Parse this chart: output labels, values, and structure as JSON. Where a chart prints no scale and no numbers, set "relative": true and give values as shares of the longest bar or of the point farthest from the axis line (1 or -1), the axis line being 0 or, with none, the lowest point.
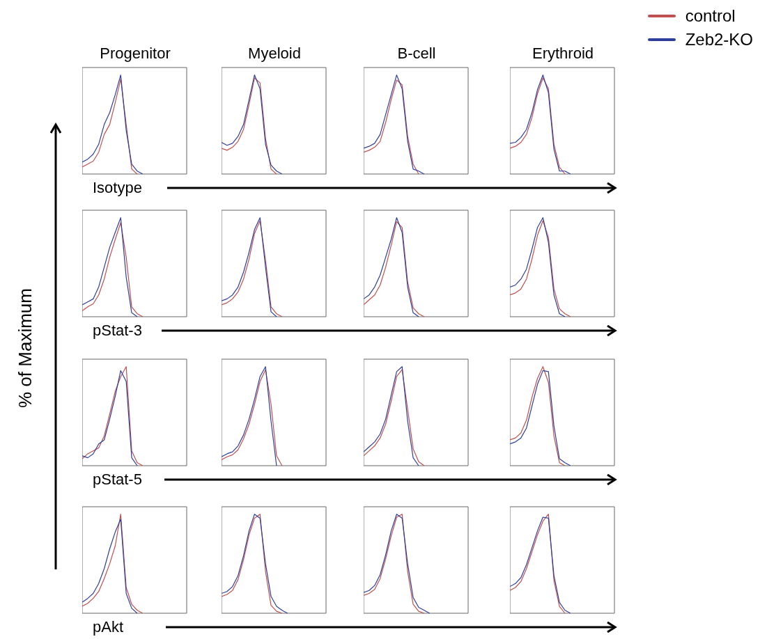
{
  "chart_data": [
    {
      "type": "line",
      "title": "Progenitor",
      "xlabel": "Isotype",
      "legend": "top right",
      "relative": true,
      "tick_labels": false,
      "categories": [
        null,
        null,
        null,
        null,
        null,
        null,
        null,
        null,
        null,
        null,
        null,
        null,
        null,
        null,
        null,
        null,
        null,
        null,
        null,
        null
      ],
      "series": [
        {
          "name": "control",
          "color": "#c0504d",
          "values": [
            0.07,
            0.1,
            0.13,
            0.22,
            0.4,
            0.5,
            0.72,
            0.96,
            0.5,
            0.05,
            0,
            null,
            null,
            null,
            null,
            null,
            null,
            null,
            null,
            null
          ]
        },
        {
          "name": "Zeb2-KO",
          "color": "#2e3f9e",
          "values": [
            0.12,
            0.15,
            0.2,
            0.3,
            0.5,
            0.62,
            0.8,
            1.0,
            0.44,
            0.1,
            0.03,
            0,
            null,
            null,
            null,
            null,
            null,
            null,
            null,
            null
          ]
        }
      ]
    },
    {
      "type": "line",
      "title": "Myeloid",
      "relative": true,
      "tick_labels": false,
      "categories": [
        null,
        null,
        null,
        null,
        null,
        null,
        null,
        null,
        null,
        null,
        null,
        null,
        null,
        null,
        null,
        null,
        null,
        null,
        null,
        null
      ],
      "series": [
        {
          "color": "#c0504d",
          "values": [
            0.26,
            0.24,
            0.27,
            0.33,
            0.45,
            0.7,
            0.97,
            0.92,
            0.36,
            0.05,
            0,
            null,
            null,
            null,
            null,
            null,
            null,
            null,
            null,
            null
          ]
        },
        {
          "color": "#2e3f9e",
          "values": [
            0.32,
            0.29,
            0.31,
            0.38,
            0.5,
            0.75,
            1.0,
            0.86,
            0.3,
            0.09,
            0.03,
            0,
            null,
            null,
            null,
            null,
            null,
            null,
            null,
            null
          ]
        }
      ]
    },
    {
      "type": "line",
      "title": "B-cell",
      "relative": true,
      "tick_labels": false,
      "categories": [
        null,
        null,
        null,
        null,
        null,
        null,
        null,
        null,
        null,
        null,
        null,
        null,
        null,
        null,
        null,
        null,
        null,
        null,
        null,
        null
      ],
      "series": [
        {
          "color": "#c0504d",
          "values": [
            0.22,
            0.24,
            0.27,
            0.33,
            0.52,
            0.75,
            0.95,
            0.9,
            0.38,
            0.1,
            0,
            null,
            null,
            null,
            null,
            null,
            null,
            null,
            null,
            null
          ]
        },
        {
          "color": "#2e3f9e",
          "values": [
            0.26,
            0.28,
            0.31,
            0.4,
            0.6,
            0.8,
            1.0,
            0.86,
            0.33,
            0.05,
            0.03,
            0,
            null,
            null,
            null,
            null,
            null,
            null,
            null,
            null
          ]
        }
      ]
    },
    {
      "type": "line",
      "title": "Erythroid",
      "relative": true,
      "tick_labels": false,
      "categories": [
        null,
        null,
        null,
        null,
        null,
        null,
        null,
        null,
        null,
        null,
        null,
        null,
        null,
        null,
        null,
        null,
        null,
        null,
        null,
        null
      ],
      "series": [
        {
          "color": "#c0504d",
          "values": [
            0.26,
            0.28,
            0.32,
            0.4,
            0.57,
            0.81,
            0.97,
            0.86,
            0.3,
            0.07,
            0,
            null,
            null,
            null,
            null,
            null,
            null,
            null,
            null,
            null
          ]
        },
        {
          "color": "#2e3f9e",
          "values": [
            0.31,
            0.32,
            0.37,
            0.45,
            0.62,
            0.85,
            1.0,
            0.82,
            0.25,
            0.03,
            0.03,
            0,
            null,
            null,
            null,
            null,
            null,
            null,
            null,
            null
          ]
        }
      ]
    },
    {
      "type": "line",
      "xlabel": "pStat-3",
      "ylabel": "% of Maximum",
      "relative": true,
      "tick_labels": false,
      "categories": [
        null,
        null,
        null,
        null,
        null,
        null,
        null,
        null,
        null,
        null,
        null,
        null,
        null,
        null,
        null,
        null,
        null,
        null,
        null,
        null
      ],
      "series": [
        {
          "color": "#c0504d",
          "values": [
            0.06,
            0.1,
            0.13,
            0.22,
            0.38,
            0.6,
            0.78,
            0.95,
            0.6,
            0.1,
            0.03,
            0,
            null,
            null,
            null,
            null,
            null,
            null,
            null,
            null
          ]
        },
        {
          "color": "#2e3f9e",
          "values": [
            0.12,
            0.15,
            0.18,
            0.3,
            0.5,
            0.7,
            0.85,
            1.0,
            0.4,
            0.04,
            0,
            null,
            null,
            null,
            null,
            null,
            null,
            null,
            null,
            null
          ]
        }
      ]
    },
    {
      "type": "line",
      "relative": true,
      "tick_labels": false,
      "categories": [
        null,
        null,
        null,
        null,
        null,
        null,
        null,
        null,
        null,
        null,
        null,
        null,
        null,
        null,
        null,
        null,
        null,
        null,
        null,
        null
      ],
      "series": [
        {
          "color": "#c0504d",
          "values": [
            0.12,
            0.14,
            0.18,
            0.25,
            0.38,
            0.58,
            0.84,
            0.97,
            0.57,
            0.1,
            0.03,
            0,
            null,
            null,
            null,
            null,
            null,
            null,
            null,
            null
          ]
        },
        {
          "color": "#2e3f9e",
          "values": [
            0.16,
            0.18,
            0.22,
            0.3,
            0.45,
            0.65,
            0.88,
            1.0,
            0.5,
            0.05,
            0,
            null,
            null,
            null,
            null,
            null,
            null,
            null,
            null,
            null
          ]
        }
      ]
    },
    {
      "type": "line",
      "relative": true,
      "tick_labels": false,
      "categories": [
        null,
        null,
        null,
        null,
        null,
        null,
        null,
        null,
        null,
        null,
        null,
        null,
        null,
        null,
        null,
        null,
        null,
        null,
        null,
        null
      ],
      "series": [
        {
          "color": "#c0504d",
          "values": [
            0.12,
            0.17,
            0.22,
            0.32,
            0.5,
            0.72,
            0.96,
            0.9,
            0.35,
            0.09,
            0.03,
            0,
            null,
            null,
            null,
            null,
            null,
            null,
            null,
            null
          ]
        },
        {
          "color": "#2e3f9e",
          "values": [
            0.18,
            0.22,
            0.3,
            0.42,
            0.6,
            0.78,
            1.0,
            0.85,
            0.3,
            0.04,
            0,
            null,
            null,
            null,
            null,
            null,
            null,
            null,
            null,
            null
          ]
        }
      ]
    },
    {
      "type": "line",
      "relative": true,
      "tick_labels": false,
      "categories": [
        null,
        null,
        null,
        null,
        null,
        null,
        null,
        null,
        null,
        null,
        null,
        null,
        null,
        null,
        null,
        null,
        null,
        null,
        null,
        null
      ],
      "series": [
        {
          "color": "#c0504d",
          "values": [
            0.22,
            0.24,
            0.28,
            0.38,
            0.58,
            0.82,
            0.97,
            0.8,
            0.28,
            0.08,
            0.03,
            0,
            null,
            null,
            null,
            null,
            null,
            null,
            null,
            null
          ]
        },
        {
          "color": "#2e3f9e",
          "values": [
            0.3,
            0.32,
            0.38,
            0.48,
            0.68,
            0.9,
            1.0,
            0.75,
            0.22,
            0.03,
            0,
            null,
            null,
            null,
            null,
            null,
            null,
            null,
            null,
            null
          ]
        }
      ]
    },
    {
      "type": "line",
      "xlabel": "pStat-5",
      "relative": true,
      "tick_labels": false,
      "categories": [
        null,
        null,
        null,
        null,
        null,
        null,
        null,
        null,
        null,
        null,
        null,
        null,
        null,
        null,
        null,
        null,
        null,
        null,
        null,
        null
      ],
      "series": [
        {
          "color": "#c0504d",
          "values": [
            0.07,
            0.12,
            0.15,
            0.18,
            0.3,
            0.52,
            0.75,
            0.9,
            1.0,
            0.15,
            0.03,
            0,
            null,
            null,
            null,
            null,
            null,
            null,
            null,
            null
          ]
        },
        {
          "color": "#2e3f9e",
          "values": [
            0.1,
            0.08,
            0.12,
            0.22,
            0.26,
            0.47,
            0.7,
            0.96,
            0.85,
            0.08,
            0,
            null,
            null,
            null,
            null,
            null,
            null,
            null,
            null,
            null
          ]
        }
      ]
    },
    {
      "type": "line",
      "relative": true,
      "tick_labels": false,
      "categories": [
        null,
        null,
        null,
        null,
        null,
        null,
        null,
        null,
        null,
        null,
        null,
        null,
        null,
        null,
        null,
        null,
        null,
        null,
        null,
        null
      ],
      "series": [
        {
          "color": "#c0504d",
          "values": [
            0.06,
            0.09,
            0.11,
            0.16,
            0.27,
            0.42,
            0.62,
            0.85,
            0.97,
            0.62,
            0.1,
            0,
            null,
            null,
            null,
            null,
            null,
            null,
            null,
            null
          ]
        },
        {
          "color": "#2e3f9e",
          "values": [
            0.09,
            0.12,
            0.14,
            0.2,
            0.31,
            0.47,
            0.67,
            0.9,
            1.0,
            0.45,
            0,
            null,
            null,
            null,
            null,
            null,
            null,
            null,
            null,
            null
          ]
        }
      ]
    },
    {
      "type": "line",
      "relative": true,
      "tick_labels": false,
      "categories": [
        null,
        null,
        null,
        null,
        null,
        null,
        null,
        null,
        null,
        null,
        null,
        null,
        null,
        null,
        null,
        null,
        null,
        null,
        null,
        null
      ],
      "series": [
        {
          "color": "#c0504d",
          "values": [
            0.1,
            0.15,
            0.2,
            0.28,
            0.42,
            0.65,
            0.9,
            0.97,
            0.57,
            0.17,
            0.04,
            0,
            null,
            null,
            null,
            null,
            null,
            null,
            null,
            null
          ]
        },
        {
          "color": "#2e3f9e",
          "values": [
            0.14,
            0.19,
            0.24,
            0.32,
            0.47,
            0.71,
            0.95,
            1.0,
            0.45,
            0.08,
            0,
            null,
            null,
            null,
            null,
            null,
            null,
            null,
            null,
            null
          ]
        }
      ]
    },
    {
      "type": "line",
      "relative": true,
      "tick_labels": false,
      "categories": [
        null,
        null,
        null,
        null,
        null,
        null,
        null,
        null,
        null,
        null,
        null,
        null,
        null,
        null,
        null,
        null,
        null,
        null,
        null,
        null
      ],
      "series": [
        {
          "color": "#c0504d",
          "values": [
            0.26,
            0.28,
            0.33,
            0.46,
            0.69,
            0.88,
            1.0,
            0.84,
            0.3,
            0.03,
            0,
            null,
            null,
            null,
            null,
            null,
            null,
            null,
            null,
            null
          ]
        },
        {
          "color": "#2e3f9e",
          "values": [
            0.22,
            0.24,
            0.28,
            0.38,
            0.6,
            0.82,
            0.96,
            0.95,
            0.4,
            0.07,
            0.03,
            0,
            null,
            null,
            null,
            null,
            null,
            null,
            null,
            null
          ]
        }
      ]
    },
    {
      "type": "line",
      "xlabel": "pAkt",
      "relative": true,
      "tick_labels": false,
      "categories": [
        null,
        null,
        null,
        null,
        null,
        null,
        null,
        null,
        null,
        null,
        null,
        null,
        null,
        null,
        null,
        null,
        null,
        null,
        null,
        null
      ],
      "series": [
        {
          "color": "#c0504d",
          "values": [
            0.07,
            0.1,
            0.15,
            0.22,
            0.35,
            0.5,
            0.68,
            1.0,
            0.26,
            0.09,
            0.03,
            0,
            null,
            null,
            null,
            null,
            null,
            null,
            null,
            null
          ]
        },
        {
          "color": "#2e3f9e",
          "values": [
            0.11,
            0.15,
            0.2,
            0.3,
            0.45,
            0.65,
            0.82,
            0.95,
            0.2,
            0.05,
            0,
            null,
            null,
            null,
            null,
            null,
            null,
            null,
            null,
            null
          ]
        }
      ]
    },
    {
      "type": "line",
      "relative": true,
      "tick_labels": false,
      "categories": [
        null,
        null,
        null,
        null,
        null,
        null,
        null,
        null,
        null,
        null,
        null,
        null,
        null,
        null,
        null,
        null,
        null,
        null,
        null,
        null
      ],
      "series": [
        {
          "color": "#c0504d",
          "values": [
            0.17,
            0.19,
            0.23,
            0.34,
            0.54,
            0.79,
            0.96,
            1.0,
            0.42,
            0.08,
            0.02,
            0,
            null,
            null,
            null,
            null,
            null,
            null,
            null,
            null
          ]
        },
        {
          "color": "#2e3f9e",
          "values": [
            0.2,
            0.22,
            0.27,
            0.38,
            0.58,
            0.83,
            1.0,
            0.96,
            0.5,
            0.17,
            0.07,
            0.03,
            0,
            null,
            null,
            null,
            null,
            null,
            null,
            null
          ]
        }
      ]
    },
    {
      "type": "line",
      "relative": true,
      "tick_labels": false,
      "categories": [
        null,
        null,
        null,
        null,
        null,
        null,
        null,
        null,
        null,
        null,
        null,
        null,
        null,
        null,
        null,
        null,
        null,
        null,
        null,
        null
      ],
      "series": [
        {
          "color": "#c0504d",
          "values": [
            0.18,
            0.2,
            0.24,
            0.35,
            0.55,
            0.78,
            0.97,
            1.0,
            0.42,
            0.09,
            0.02,
            0,
            null,
            null,
            null,
            null,
            null,
            null,
            null,
            null
          ]
        },
        {
          "color": "#2e3f9e",
          "values": [
            0.21,
            0.23,
            0.28,
            0.39,
            0.59,
            0.83,
            1.0,
            0.96,
            0.5,
            0.16,
            0.06,
            0.03,
            0,
            null,
            null,
            null,
            null,
            null,
            null,
            null
          ]
        }
      ]
    },
    {
      "type": "line",
      "relative": true,
      "tick_labels": false,
      "categories": [
        null,
        null,
        null,
        null,
        null,
        null,
        null,
        null,
        null,
        null,
        null,
        null,
        null,
        null,
        null,
        null,
        null,
        null,
        null,
        null
      ],
      "series": [
        {
          "color": "#c0504d",
          "values": [
            0.23,
            0.26,
            0.32,
            0.45,
            0.62,
            0.79,
            0.93,
            1.0,
            0.33,
            0.07,
            0,
            null,
            null,
            null,
            null,
            null,
            null,
            null,
            null,
            null
          ]
        },
        {
          "color": "#2e3f9e",
          "values": [
            0.27,
            0.3,
            0.36,
            0.49,
            0.66,
            0.83,
            0.97,
            0.96,
            0.38,
            0.11,
            0.03,
            0,
            null,
            null,
            null,
            null,
            null,
            null,
            null,
            null
          ]
        }
      ]
    }
  ]
}
